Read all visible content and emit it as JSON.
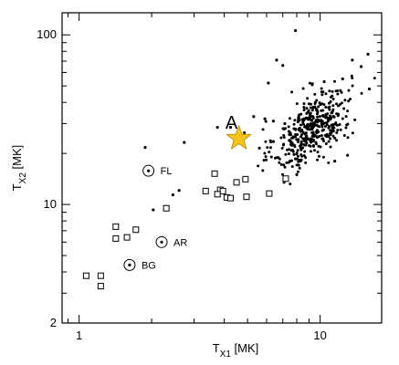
{
  "chart_data": {
    "type": "scatter",
    "title": "",
    "x_axis": {
      "scale": "log",
      "range": [
        0.85,
        18
      ],
      "ticks": [
        1,
        10
      ],
      "tick_labels": [
        "1",
        "10"
      ],
      "label_main": "T",
      "label_sub": "X1",
      "label_unit": " [MK]"
    },
    "y_axis": {
      "scale": "log",
      "range": [
        2,
        135
      ],
      "ticks": [
        2,
        10,
        100
      ],
      "tick_labels": [
        "2",
        "10",
        "100"
      ],
      "label_main": "T",
      "label_sub": "X2",
      "label_unit": " [MK]"
    },
    "grid": false,
    "series": [
      {
        "marker": "square-open",
        "points": [
          [
            1.07,
            3.8
          ],
          [
            1.23,
            3.8
          ],
          [
            1.23,
            3.3
          ],
          [
            1.42,
            7.4
          ],
          [
            1.42,
            6.3
          ],
          [
            1.58,
            6.4
          ],
          [
            1.72,
            7.1
          ],
          [
            2.3,
            9.5
          ],
          [
            3.35,
            12.0
          ],
          [
            3.65,
            15.2
          ],
          [
            3.85,
            12.2
          ],
          [
            3.95,
            12.0
          ],
          [
            4.1,
            11.0
          ],
          [
            4.5,
            13.5
          ],
          [
            4.9,
            14.1
          ],
          [
            4.95,
            11.1
          ],
          [
            6.15,
            11.6
          ],
          [
            7.2,
            14.2
          ],
          [
            3.75,
            11.5
          ],
          [
            4.25,
            10.9
          ]
        ]
      },
      {
        "marker": "dot",
        "points": [
          [
            1.88,
            21.7
          ],
          [
            2.03,
            9.3
          ],
          [
            2.45,
            11.4
          ],
          [
            2.6,
            12.1
          ],
          [
            2.73,
            23.2
          ],
          [
            3.75,
            28.5
          ],
          [
            4.25,
            28.5
          ],
          [
            4.85,
            26.5
          ],
          [
            5.3,
            33.0
          ],
          [
            5.9,
            32.0
          ],
          [
            6.4,
            31.0
          ],
          [
            6.1,
            52.0
          ],
          [
            6.6,
            71.0
          ],
          [
            7.0,
            66.0
          ],
          [
            7.9,
            106.0
          ],
          [
            13.6,
            71.0
          ],
          [
            14.8,
            65.0
          ],
          [
            15.8,
            77.0
          ],
          [
            16.0,
            48.0
          ],
          [
            12.4,
            55.0
          ],
          [
            10.4,
            53.0
          ],
          [
            11.5,
            18.0
          ],
          [
            13.0,
            19.5
          ],
          [
            8.0,
            15.0
          ],
          [
            7.5,
            18.0
          ],
          [
            5.6,
            21.5
          ],
          [
            6.4,
            23.5
          ]
        ]
      },
      {
        "marker": "dot-cluster",
        "center": [
          9.3,
          28.5
        ],
        "count": 420,
        "spread_log10": [
          0.08,
          0.12
        ]
      },
      {
        "marker": "circle-dot",
        "points": [
          {
            "x": 1.94,
            "y": 15.8,
            "label": "FL"
          },
          {
            "x": 2.2,
            "y": 6.0,
            "label": "AR"
          },
          {
            "x": 1.62,
            "y": 4.4,
            "label": "BG"
          }
        ]
      },
      {
        "marker": "star",
        "color": "#f7c51a",
        "points": [
          {
            "x": 4.6,
            "y": 24.5,
            "label": "A"
          }
        ]
      }
    ]
  }
}
